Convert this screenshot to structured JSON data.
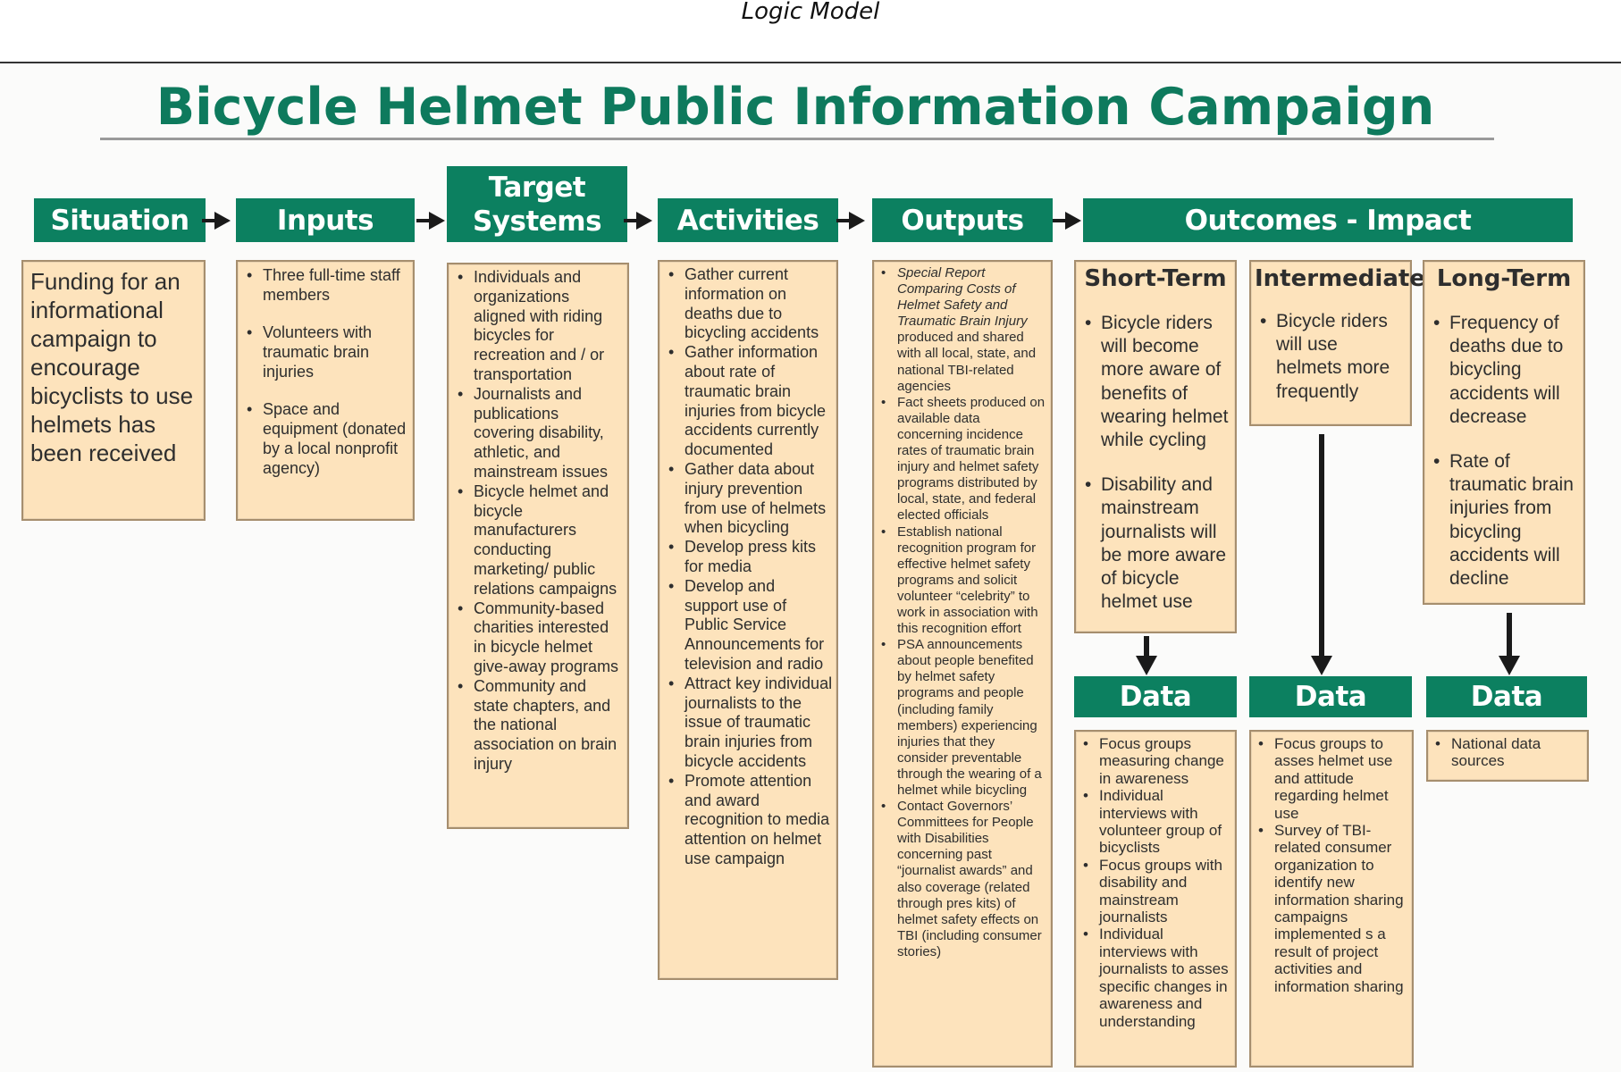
{
  "page_caption": "Logic Model",
  "title": "Bicycle Helmet Public Information Campaign",
  "headers": {
    "situation": "Situation",
    "inputs": "Inputs",
    "target_systems_line1": "Target",
    "target_systems_line2": "Systems",
    "activities": "Activities",
    "outputs": "Outputs",
    "outcomes": "Outcomes - Impact"
  },
  "situation_text": "Funding for an informational campaign to encourage bicyclists to use helmets has been received",
  "inputs": [
    "Three full-time staff members",
    "Volunteers with traumatic brain injuries",
    "Space and equipment (donated by a local nonprofit agency)"
  ],
  "target_systems": [
    "Individuals and organizations aligned with riding bicycles for recreation and / or transportation",
    "Journalists and publications covering disability, athletic, and mainstream issues",
    "Bicycle helmet and bicycle manufacturers conducting marketing/ public relations campaigns",
    "Community-based charities interested in bicycle helmet give-away programs",
    "Community and state chapters, and the national association on brain injury"
  ],
  "activities": [
    "Gather current information on deaths due to bicycling accidents",
    "Gather information about rate of traumatic brain injuries from bicycle accidents currently documented",
    "Gather data about injury prevention from use of helmets when bicycling",
    "Develop press kits for media",
    "Develop and support use of Public Service Announcements for television and radio",
    "Attract key individual journalists to the issue of traumatic brain injuries from bicycle accidents",
    "Promote attention and award recognition to media attention on helmet use campaign"
  ],
  "outputs": {
    "first_italic_a": "Special Report Comparing Costs of Helmet Safety and Traumatic Brain Injury",
    "first_rest": " produced and shared with all local, state, and national TBI-related agencies",
    "items": [
      "Fact sheets produced on available data concerning incidence rates of traumatic brain injury and helmet safety programs distributed by local, state, and federal elected officials",
      "Establish national recognition program for effective helmet safety programs and solicit volunteer “celebrity” to work in association with this recognition effort",
      "PSA announcements about people benefited by helmet safety programs and people (including family members) experiencing injuries that they consider preventable through the wearing of a helmet while bicycling",
      "Contact Governors’ Committees for People with Disabilities concerning past “journalist awards” and also coverage (related through pres kits) of helmet safety effects on TBI (including consumer stories)"
    ]
  },
  "short_term": {
    "title": "Short-Term",
    "items": [
      "Bicycle riders will become more aware of benefits of wearing helmet while cycling",
      "Disability and mainstream journalists will be more aware of bicycle helmet use"
    ]
  },
  "intermediate": {
    "title": "Intermediate",
    "items": [
      "Bicycle riders will use helmets more frequently"
    ]
  },
  "long_term": {
    "title": "Long-Term",
    "items": [
      "Frequency of deaths due to bicycling accidents will decrease",
      "Rate of traumatic brain injuries from bicycling accidents will decline"
    ]
  },
  "data_label": "Data",
  "data_short": [
    "Focus groups measuring change in awareness",
    "Individual interviews with volunteer group of bicyclists",
    "Focus groups with disability and mainstream journalists",
    "Individual interviews with journalists to asses specific changes in awareness and understanding"
  ],
  "data_intermediate": [
    "Focus groups to asses helmet use and attitude regarding helmet use",
    "Survey of TBI-related consumer organization to identify new information sharing campaigns implemented s a result of project activities and information sharing"
  ],
  "data_long": [
    "National data sources"
  ],
  "colors": {
    "header_green": "#0c8060",
    "title_green": "#0e7a5d",
    "box_fill": "#fde3bc",
    "box_border": "#a68e6e"
  }
}
